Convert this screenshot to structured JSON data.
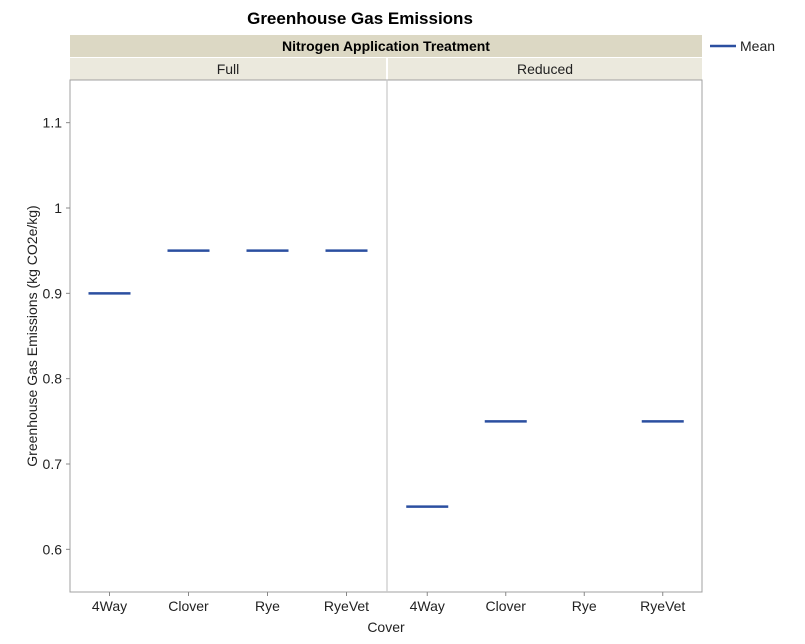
{
  "chart_data": {
    "type": "line",
    "title": "Greenhouse Gas Emissions",
    "group_title": "Nitrogen Application Treatment",
    "panels": [
      "Full",
      "Reduced"
    ],
    "categories": [
      "4Way",
      "Clover",
      "Rye",
      "RyeVet"
    ],
    "xlabel": "Cover",
    "ylabel": "Greenhouse Gas Emissions (kg CO2e/kg)",
    "ylim": [
      0.55,
      1.15
    ],
    "yticks": [
      0.6,
      0.7,
      0.8,
      0.9,
      1,
      1.1
    ],
    "series": [
      {
        "name": "Mean",
        "color": "#2b4fa0",
        "values": {
          "Full": [
            0.9,
            0.95,
            0.95,
            0.95
          ],
          "Reduced": [
            0.65,
            0.75,
            null,
            0.75
          ]
        }
      }
    ],
    "legend": "top-right",
    "grid": false
  }
}
